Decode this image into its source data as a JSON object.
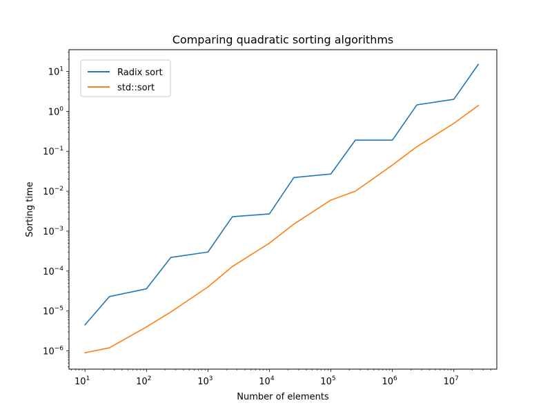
{
  "chart_data": {
    "type": "line",
    "title": "Comparing quadratic sorting algorithms",
    "xlabel": "Number of elements",
    "ylabel": "Sorting time",
    "xscale": "log",
    "yscale": "log",
    "xlim": [
      5.5,
      50000000
    ],
    "ylim": [
      3.5e-07,
      35
    ],
    "x_ticks": [
      {
        "value": 10,
        "mantissa": "10",
        "exp": "1"
      },
      {
        "value": 100,
        "mantissa": "10",
        "exp": "2"
      },
      {
        "value": 1000,
        "mantissa": "10",
        "exp": "3"
      },
      {
        "value": 10000,
        "mantissa": "10",
        "exp": "4"
      },
      {
        "value": 100000,
        "mantissa": "10",
        "exp": "5"
      },
      {
        "value": 1000000,
        "mantissa": "10",
        "exp": "6"
      },
      {
        "value": 10000000,
        "mantissa": "10",
        "exp": "7"
      }
    ],
    "y_ticks": [
      {
        "value": 1e-06,
        "mantissa": "10",
        "exp": "−6"
      },
      {
        "value": 1e-05,
        "mantissa": "10",
        "exp": "−5"
      },
      {
        "value": 0.0001,
        "mantissa": "10",
        "exp": "−4"
      },
      {
        "value": 0.001,
        "mantissa": "10",
        "exp": "−3"
      },
      {
        "value": 0.01,
        "mantissa": "10",
        "exp": "−2"
      },
      {
        "value": 0.1,
        "mantissa": "10",
        "exp": "−1"
      },
      {
        "value": 1,
        "mantissa": "10",
        "exp": "0"
      },
      {
        "value": 10,
        "mantissa": "10",
        "exp": "1"
      }
    ],
    "grid": false,
    "legend_position": "top-left",
    "series": [
      {
        "name": "Radix sort",
        "color": "#1f77b4",
        "x": [
          10,
          25,
          100,
          250,
          1000,
          2500,
          10000,
          25000,
          100000,
          250000,
          1000000,
          2500000,
          10000000,
          25000000
        ],
        "y": [
          4.5e-06,
          2.3e-05,
          3.6e-05,
          0.00022,
          0.0003,
          0.0023,
          0.0027,
          0.022,
          0.027,
          0.19,
          0.19,
          1.45,
          2.0,
          15
        ]
      },
      {
        "name": "std::sort",
        "color": "#ff7f0e",
        "x": [
          10,
          25,
          100,
          250,
          1000,
          2500,
          10000,
          25000,
          100000,
          250000,
          1000000,
          2500000,
          10000000,
          25000000
        ],
        "y": [
          9e-07,
          1.2e-06,
          4e-06,
          9.5e-06,
          4e-05,
          0.00013,
          0.0005,
          0.0015,
          0.006,
          0.01,
          0.045,
          0.13,
          0.5,
          1.4
        ]
      }
    ]
  }
}
